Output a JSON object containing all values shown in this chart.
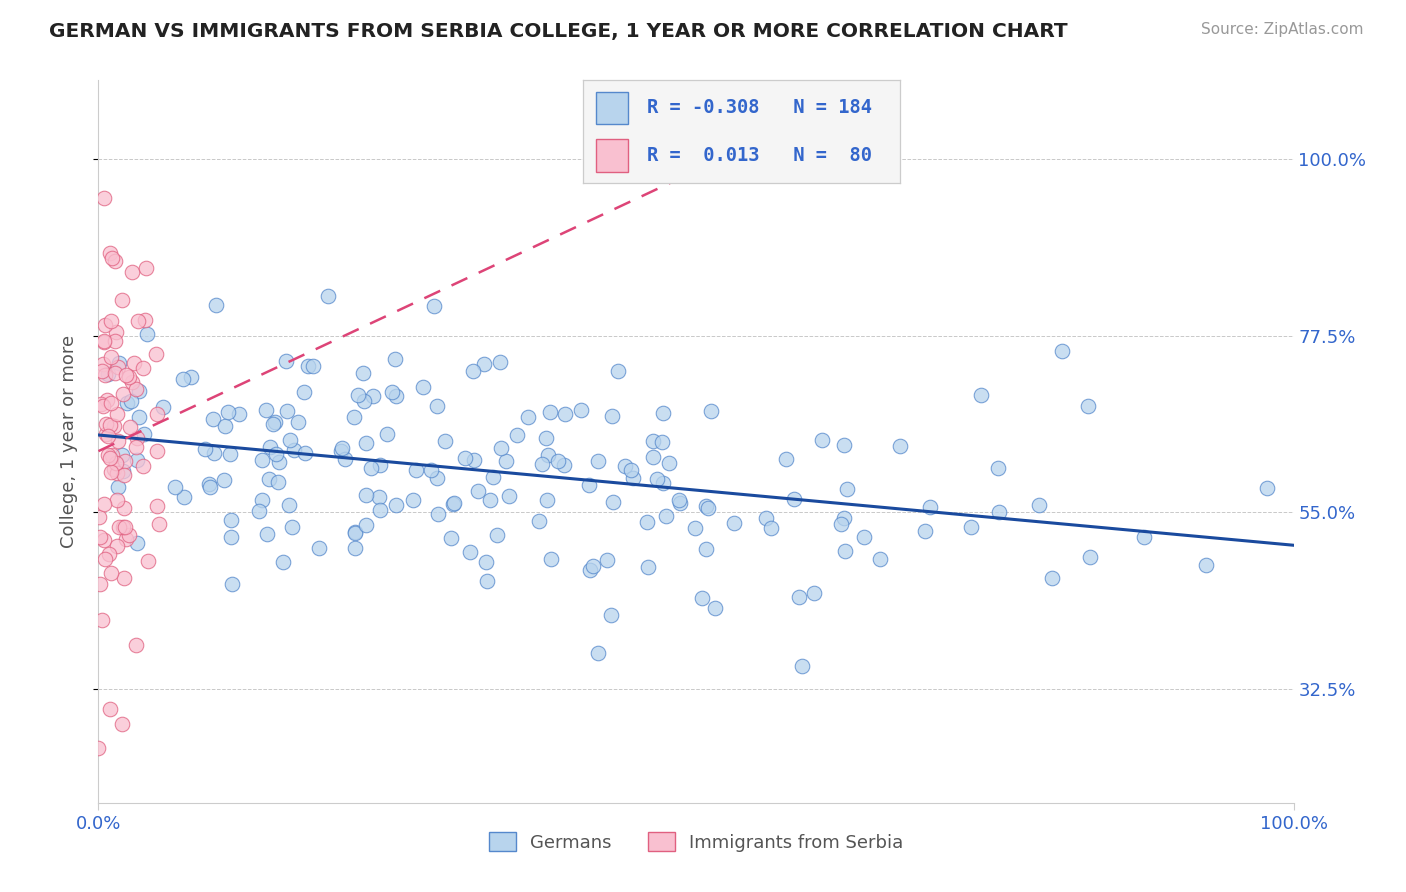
{
  "title": "GERMAN VS IMMIGRANTS FROM SERBIA COLLEGE, 1 YEAR OR MORE CORRELATION CHART",
  "source": "Source: ZipAtlas.com",
  "ylabel": "College, 1 year or more",
  "xlim": [
    0.0,
    1.0
  ],
  "ylim": [
    0.18,
    1.1
  ],
  "yticks": [
    0.325,
    0.55,
    0.775,
    1.0
  ],
  "ytick_labels": [
    "32.5%",
    "55.0%",
    "77.5%",
    "100.0%"
  ],
  "xtick_labels": [
    "0.0%",
    "100.0%"
  ],
  "blue_fill": "#b8d4ed",
  "blue_edge": "#5588cc",
  "pink_fill": "#f9c0d0",
  "pink_edge": "#e06080",
  "blue_line_color": "#1a4a9e",
  "pink_line_color": "#dd4477",
  "grid_color": "#bbbbbb",
  "title_color": "#222222",
  "label_color": "#555555",
  "tick_color": "#3366cc",
  "source_color": "#999999",
  "legend_text_color": "#3366cc",
  "legend_bg": "#f5f5f5",
  "legend_border": "#cccccc",
  "r1": -0.308,
  "n1": 184,
  "r2": 0.013,
  "n2": 80,
  "seed": 42
}
